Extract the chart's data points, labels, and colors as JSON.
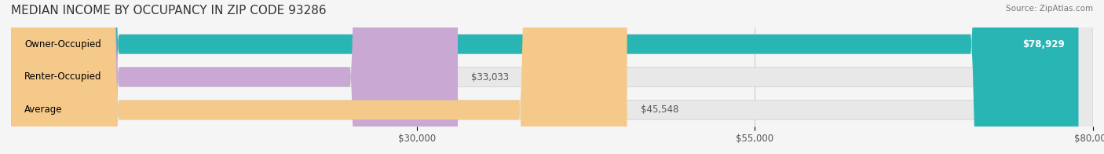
{
  "title": "MEDIAN INCOME BY OCCUPANCY IN ZIP CODE 93286",
  "source": "Source: ZipAtlas.com",
  "categories": [
    "Owner-Occupied",
    "Renter-Occupied",
    "Average"
  ],
  "values": [
    78929,
    33033,
    45548
  ],
  "bar_colors": [
    "#2ab5b5",
    "#c9a8d4",
    "#f5c98a"
  ],
  "bar_labels": [
    "$78,929",
    "$33,033",
    "$45,548"
  ],
  "xlim": [
    0,
    80000
  ],
  "xticks": [
    30000,
    55000,
    80000
  ],
  "xtick_labels": [
    "$30,000",
    "$55,000",
    "$80,000"
  ],
  "background_color": "#f5f5f5",
  "bar_bg_color": "#e8e8e8",
  "title_fontsize": 11,
  "label_fontsize": 8.5,
  "tick_fontsize": 8.5
}
